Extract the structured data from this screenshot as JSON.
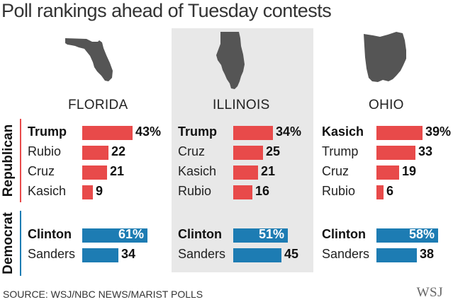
{
  "title": "Poll rankings ahead of Tuesday contests",
  "source": "SOURCE: WSJ/NBC NEWS/MARIST POLLS",
  "logo": "WSJ",
  "colors": {
    "republican": "#e84a4a",
    "democrat": "#1d7cb3",
    "panel_bg": "#e8e8e8"
  },
  "party_labels": {
    "republican": "Republican",
    "democrat": "Democrat"
  },
  "chart_data": [
    {
      "type": "bar",
      "state": "FLORIDA",
      "state_icon": "florida-map-icon",
      "republican": [
        {
          "name": "Trump",
          "value": 43,
          "label": "43%",
          "lead": true
        },
        {
          "name": "Rubio",
          "value": 22,
          "label": "22",
          "lead": false
        },
        {
          "name": "Cruz",
          "value": 21,
          "label": "21",
          "lead": false
        },
        {
          "name": "Kasich",
          "value": 9,
          "label": "9",
          "lead": false
        }
      ],
      "democrat": [
        {
          "name": "Clinton",
          "value": 61,
          "label": "61%",
          "lead": true
        },
        {
          "name": "Sanders",
          "value": 34,
          "label": "34",
          "lead": false
        }
      ]
    },
    {
      "type": "bar",
      "state": "ILLINOIS",
      "state_icon": "illinois-map-icon",
      "republican": [
        {
          "name": "Trump",
          "value": 34,
          "label": "34%",
          "lead": true
        },
        {
          "name": "Cruz",
          "value": 25,
          "label": "25",
          "lead": false
        },
        {
          "name": "Kasich",
          "value": 21,
          "label": "21",
          "lead": false
        },
        {
          "name": "Rubio",
          "value": 16,
          "label": "16",
          "lead": false
        }
      ],
      "democrat": [
        {
          "name": "Clinton",
          "value": 51,
          "label": "51%",
          "lead": true
        },
        {
          "name": "Sanders",
          "value": 45,
          "label": "45",
          "lead": false
        }
      ]
    },
    {
      "type": "bar",
      "state": "OHIO",
      "state_icon": "ohio-map-icon",
      "republican": [
        {
          "name": "Kasich",
          "value": 39,
          "label": "39%",
          "lead": true
        },
        {
          "name": "Trump",
          "value": 33,
          "label": "33",
          "lead": false
        },
        {
          "name": "Cruz",
          "value": 19,
          "label": "19",
          "lead": false
        },
        {
          "name": "Rubio",
          "value": 6,
          "label": "6",
          "lead": false
        }
      ],
      "democrat": [
        {
          "name": "Clinton",
          "value": 58,
          "label": "58%",
          "lead": true
        },
        {
          "name": "Sanders",
          "value": 38,
          "label": "38",
          "lead": false
        }
      ]
    }
  ]
}
